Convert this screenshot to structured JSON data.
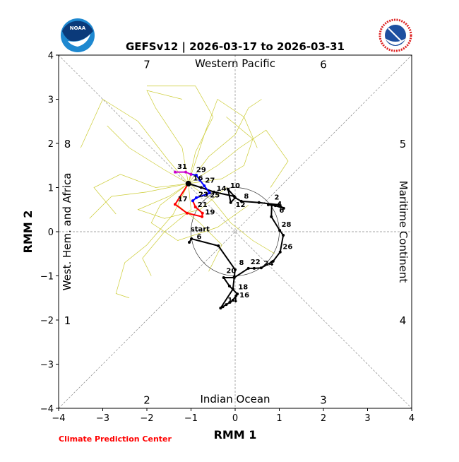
{
  "chart_data": {
    "type": "line",
    "title": "GEFSv12 | 2026-03-17 to 2026-03-31",
    "xlabel": "RMM 1",
    "ylabel": "RMM 2",
    "xlim": [
      -4,
      4
    ],
    "ylim": [
      -4,
      4
    ],
    "xticks": [
      "−4",
      "−3",
      "−2",
      "−1",
      "0",
      "1",
      "2",
      "3",
      "4"
    ],
    "yticks": [
      "−4",
      "−3",
      "−2",
      "−1",
      "0",
      "1",
      "2",
      "3",
      "4"
    ],
    "unit_circle": true,
    "phase_labels": [
      {
        "text": "1",
        "x": -3.8,
        "y": -2
      },
      {
        "text": "2",
        "x": -2,
        "y": -3.8
      },
      {
        "text": "3",
        "x": 2,
        "y": -3.8
      },
      {
        "text": "4",
        "x": 3.8,
        "y": -2
      },
      {
        "text": "5",
        "x": 3.8,
        "y": 2
      },
      {
        "text": "6",
        "x": 2,
        "y": 3.8
      },
      {
        "text": "7",
        "x": -2,
        "y": 3.8
      },
      {
        "text": "8",
        "x": -3.8,
        "y": 2
      }
    ],
    "region_labels": {
      "top": "Western Pacific",
      "bottom": "Indian Ocean",
      "left": "West. Hem. and Africa",
      "right": "Maritime Continent"
    },
    "observed": {
      "color": "#000000",
      "points": [
        [
          -1.04,
          -0.24
        ],
        [
          -0.99,
          -0.16
        ],
        [
          -0.38,
          -0.32
        ],
        [
          0.0,
          -0.86
        ],
        [
          -0.02,
          -1.02
        ],
        [
          -0.05,
          -1.3
        ],
        [
          -0.33,
          -1.73
        ],
        [
          -0.28,
          -1.7
        ],
        [
          -0.2,
          -1.65
        ],
        [
          -0.12,
          -1.6
        ],
        [
          -0.05,
          -1.55
        ],
        [
          0.02,
          -1.45
        ],
        [
          0.05,
          -1.41
        ],
        [
          -0.13,
          -1.23
        ],
        [
          -0.26,
          -1.04
        ],
        [
          -0.02,
          -1.04
        ],
        [
          0.3,
          -0.83
        ],
        [
          0.43,
          -0.83
        ],
        [
          0.59,
          -0.82
        ],
        [
          0.86,
          -0.67
        ],
        [
          1.02,
          -0.46
        ],
        [
          1.09,
          -0.08
        ],
        [
          1.01,
          0.03
        ],
        [
          0.82,
          0.34
        ],
        [
          0.83,
          0.61
        ],
        [
          0.75,
          0.61
        ],
        [
          0.91,
          0.59
        ],
        [
          1.1,
          0.53
        ],
        [
          0.99,
          0.61
        ],
        [
          0.54,
          0.66
        ],
        [
          0.14,
          0.69
        ],
        [
          0.0,
          0.77
        ],
        [
          -0.1,
          0.66
        ],
        [
          -0.16,
          0.96
        ],
        [
          -0.02,
          0.8
        ],
        [
          -0.48,
          0.9
        ],
        [
          -0.77,
          1.0
        ],
        [
          -1.06,
          1.09
        ]
      ],
      "labels": [
        {
          "text": "start",
          "x": -1.06,
          "y": -0.02
        },
        {
          "text": "6",
          "x": -0.92,
          "y": -0.1
        },
        {
          "text": "8",
          "x": 0.04,
          "y": -0.78
        },
        {
          "text": "14",
          "x": -0.22,
          "y": -1.63
        },
        {
          "text": "16",
          "x": 0.05,
          "y": -1.52
        },
        {
          "text": "18",
          "x": 0.02,
          "y": -1.38
        },
        {
          "text": "20",
          "x": -0.25,
          "y": -0.97
        },
        {
          "text": "22",
          "x": 0.3,
          "y": -0.77
        },
        {
          "text": "24",
          "x": 0.6,
          "y": -0.8
        },
        {
          "text": "26",
          "x": 1.03,
          "y": -0.42
        },
        {
          "text": "28",
          "x": 1.0,
          "y": 0.08
        },
        {
          "text": "2",
          "x": 0.84,
          "y": 0.7
        },
        {
          "text": "4",
          "x": 0.9,
          "y": 0.59
        },
        {
          "text": "6",
          "x": 0.95,
          "y": 0.59
        },
        {
          "text": "8",
          "x": 0.15,
          "y": 0.72
        },
        {
          "text": "10",
          "x": -0.16,
          "y": 0.96
        },
        {
          "text": "12",
          "x": -0.04,
          "y": 0.82
        },
        {
          "text": "14",
          "x": -0.47,
          "y": 0.9
        }
      ]
    },
    "forecast_mean": [
      {
        "color": "#ff0000",
        "points": [
          [
            -1.06,
            1.09
          ],
          [
            -1.36,
            0.62
          ],
          [
            -1.09,
            0.42
          ],
          [
            -0.75,
            0.34
          ],
          [
            -0.74,
            0.42
          ],
          [
            -0.9,
            0.56
          ],
          [
            -0.96,
            0.7
          ]
        ]
      },
      {
        "color": "#0000ff",
        "points": [
          [
            -0.96,
            0.7
          ],
          [
            -0.88,
            0.77
          ],
          [
            -0.64,
            0.85
          ],
          [
            -0.58,
            0.88
          ],
          [
            -0.7,
            1.04
          ],
          [
            -0.8,
            1.17
          ],
          [
            -0.88,
            1.28
          ],
          [
            -1.0,
            1.3
          ]
        ]
      },
      {
        "color": "#cc00cc",
        "points": [
          [
            -1.0,
            1.3
          ],
          [
            -1.12,
            1.35
          ],
          [
            -1.36,
            1.35
          ]
        ]
      }
    ],
    "forecast_labels": [
      {
        "text": "16",
        "x": -1.0,
        "y": 1.13
      },
      {
        "text": "17",
        "x": -1.35,
        "y": 0.66
      },
      {
        "text": "19",
        "x": -0.73,
        "y": 0.36
      },
      {
        "text": "21",
        "x": -0.9,
        "y": 0.53
      },
      {
        "text": "23",
        "x": -0.88,
        "y": 0.76
      },
      {
        "text": "25",
        "x": -0.62,
        "y": 0.89
      },
      {
        "text": "27",
        "x": -0.73,
        "y": 1.08
      },
      {
        "text": "29",
        "x": -0.93,
        "y": 1.32
      },
      {
        "text": "31",
        "x": -1.36,
        "y": 1.39
      }
    ],
    "forecast_start_marker": [
      -1.06,
      1.09
    ],
    "ensemble_color": "#cccc33",
    "ensemble_members": [
      [
        [
          -1.06,
          1.09
        ],
        [
          -1.5,
          1.6
        ],
        [
          -2.2,
          2.5
        ],
        [
          -3.0,
          3.0
        ],
        [
          -3.5,
          1.9
        ]
      ],
      [
        [
          -1.06,
          1.09
        ],
        [
          -1.8,
          1.0
        ],
        [
          -2.6,
          1.3
        ],
        [
          -3.2,
          1.0
        ],
        [
          -2.7,
          0.4
        ]
      ],
      [
        [
          -1.06,
          1.09
        ],
        [
          -1.4,
          0.4
        ],
        [
          -2.0,
          -0.3
        ],
        [
          -2.5,
          -0.7
        ],
        [
          -2.7,
          -1.4
        ],
        [
          -2.4,
          -1.5
        ]
      ],
      [
        [
          -1.06,
          1.09
        ],
        [
          -0.9,
          1.8
        ],
        [
          -0.5,
          2.6
        ],
        [
          -0.9,
          3.3
        ],
        [
          -2.0,
          3.3
        ]
      ],
      [
        [
          -1.06,
          1.09
        ],
        [
          -0.6,
          1.7
        ],
        [
          0.0,
          2.2
        ],
        [
          0.3,
          2.8
        ],
        [
          0.6,
          3.0
        ]
      ],
      [
        [
          -1.06,
          1.09
        ],
        [
          -0.4,
          1.5
        ],
        [
          0.1,
          1.9
        ],
        [
          0.7,
          2.3
        ],
        [
          1.2,
          1.6
        ],
        [
          0.8,
          1.0
        ]
      ],
      [
        [
          -1.06,
          1.09
        ],
        [
          -1.7,
          0.6
        ],
        [
          -1.9,
          0.2
        ],
        [
          -1.3,
          -0.2
        ],
        [
          -0.4,
          0.1
        ],
        [
          0.3,
          0.6
        ]
      ],
      [
        [
          -1.06,
          1.09
        ],
        [
          -1.5,
          0.8
        ],
        [
          -2.2,
          0.5
        ],
        [
          -1.6,
          0.3
        ],
        [
          -0.8,
          0.5
        ],
        [
          -0.2,
          1.0
        ]
      ],
      [
        [
          -1.06,
          1.09
        ],
        [
          -0.5,
          0.7
        ],
        [
          -0.1,
          0.2
        ],
        [
          0.4,
          -0.2
        ],
        [
          0.9,
          -0.5
        ]
      ],
      [
        [
          -1.06,
          1.09
        ],
        [
          -1.2,
          1.9
        ],
        [
          -1.8,
          2.8
        ],
        [
          -2.0,
          3.2
        ],
        [
          -1.2,
          3.0
        ]
      ],
      [
        [
          -1.06,
          1.09
        ],
        [
          -1.6,
          1.4
        ],
        [
          -2.4,
          1.9
        ],
        [
          -2.9,
          2.4
        ]
      ],
      [
        [
          -1.06,
          1.09
        ],
        [
          -1.0,
          0.5
        ],
        [
          -1.6,
          0.0
        ],
        [
          -2.1,
          -0.6
        ],
        [
          -1.9,
          -1.0
        ]
      ],
      [
        [
          -1.06,
          1.09
        ],
        [
          -0.3,
          1.2
        ],
        [
          0.2,
          1.5
        ],
        [
          0.4,
          2.1
        ],
        [
          -0.2,
          2.6
        ]
      ],
      [
        [
          -1.06,
          1.09
        ],
        [
          -1.3,
          0.6
        ],
        [
          -0.8,
          0.2
        ],
        [
          -0.3,
          -0.3
        ],
        [
          -0.6,
          -0.9
        ]
      ],
      [
        [
          -1.06,
          1.09
        ],
        [
          -0.7,
          2.2
        ],
        [
          -0.4,
          3.0
        ],
        [
          0.2,
          2.6
        ],
        [
          0.5,
          1.9
        ]
      ],
      [
        [
          -1.06,
          1.09
        ],
        [
          -2.0,
          0.9
        ],
        [
          -2.8,
          0.8
        ],
        [
          -3.3,
          0.3
        ]
      ]
    ]
  },
  "footer": {
    "credit": "Climate Prediction Center"
  },
  "logos": {
    "left": "NOAA",
    "right": "NATIONAL WEATHER SERVICE"
  }
}
